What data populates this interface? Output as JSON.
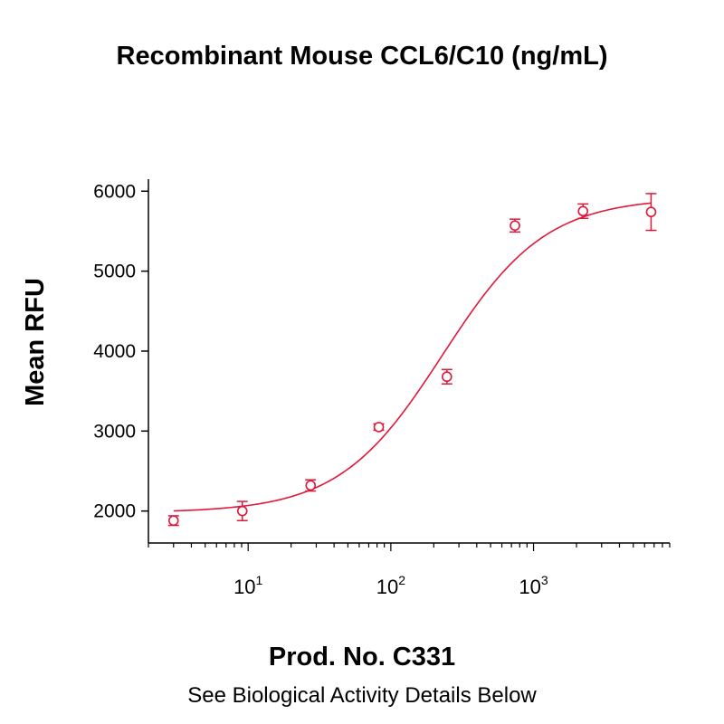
{
  "title": "Recombinant Mouse CCL6/C10 (ng/mL)",
  "product_number": "Prod. No. C331",
  "footer_note": "See Biological Activity Details Below",
  "colors": {
    "series": "#e0183a",
    "axis": "#000000"
  },
  "chart_data": {
    "type": "scatter",
    "title": "Recombinant Mouse CCL6/C10 (ng/mL)",
    "xlabel": "",
    "ylabel": "Mean RFU",
    "x_scale": "log",
    "xlim": [
      2,
      9000
    ],
    "ylim": [
      1600,
      6150
    ],
    "y_ticks": [
      {
        "value": 2000,
        "label": "2000"
      },
      {
        "value": 3000,
        "label": "3000"
      },
      {
        "value": 4000,
        "label": "4000"
      },
      {
        "value": 5000,
        "label": "5000"
      },
      {
        "value": 6000,
        "label": "6000"
      }
    ],
    "x_ticks": [
      {
        "value": 10,
        "base": "10",
        "exp": "1"
      },
      {
        "value": 100,
        "base": "10",
        "exp": "2"
      },
      {
        "value": 1000,
        "base": "10",
        "exp": "3"
      }
    ],
    "points": [
      {
        "x": 3,
        "y": 1880,
        "err": 60
      },
      {
        "x": 9.1,
        "y": 2000,
        "err": 120
      },
      {
        "x": 27.4,
        "y": 2320,
        "err": 70
      },
      {
        "x": 82.3,
        "y": 3050,
        "err": 40
      },
      {
        "x": 247,
        "y": 3680,
        "err": 90
      },
      {
        "x": 741,
        "y": 5570,
        "err": 80
      },
      {
        "x": 2222,
        "y": 5750,
        "err": 90
      },
      {
        "x": 6667,
        "y": 5740,
        "err": 230
      }
    ],
    "fit_curve": {
      "model": "4PL",
      "bottom": 1980,
      "top": 5920,
      "ec50": 230,
      "hill": 1.2
    },
    "grid": false,
    "legend": "none"
  }
}
